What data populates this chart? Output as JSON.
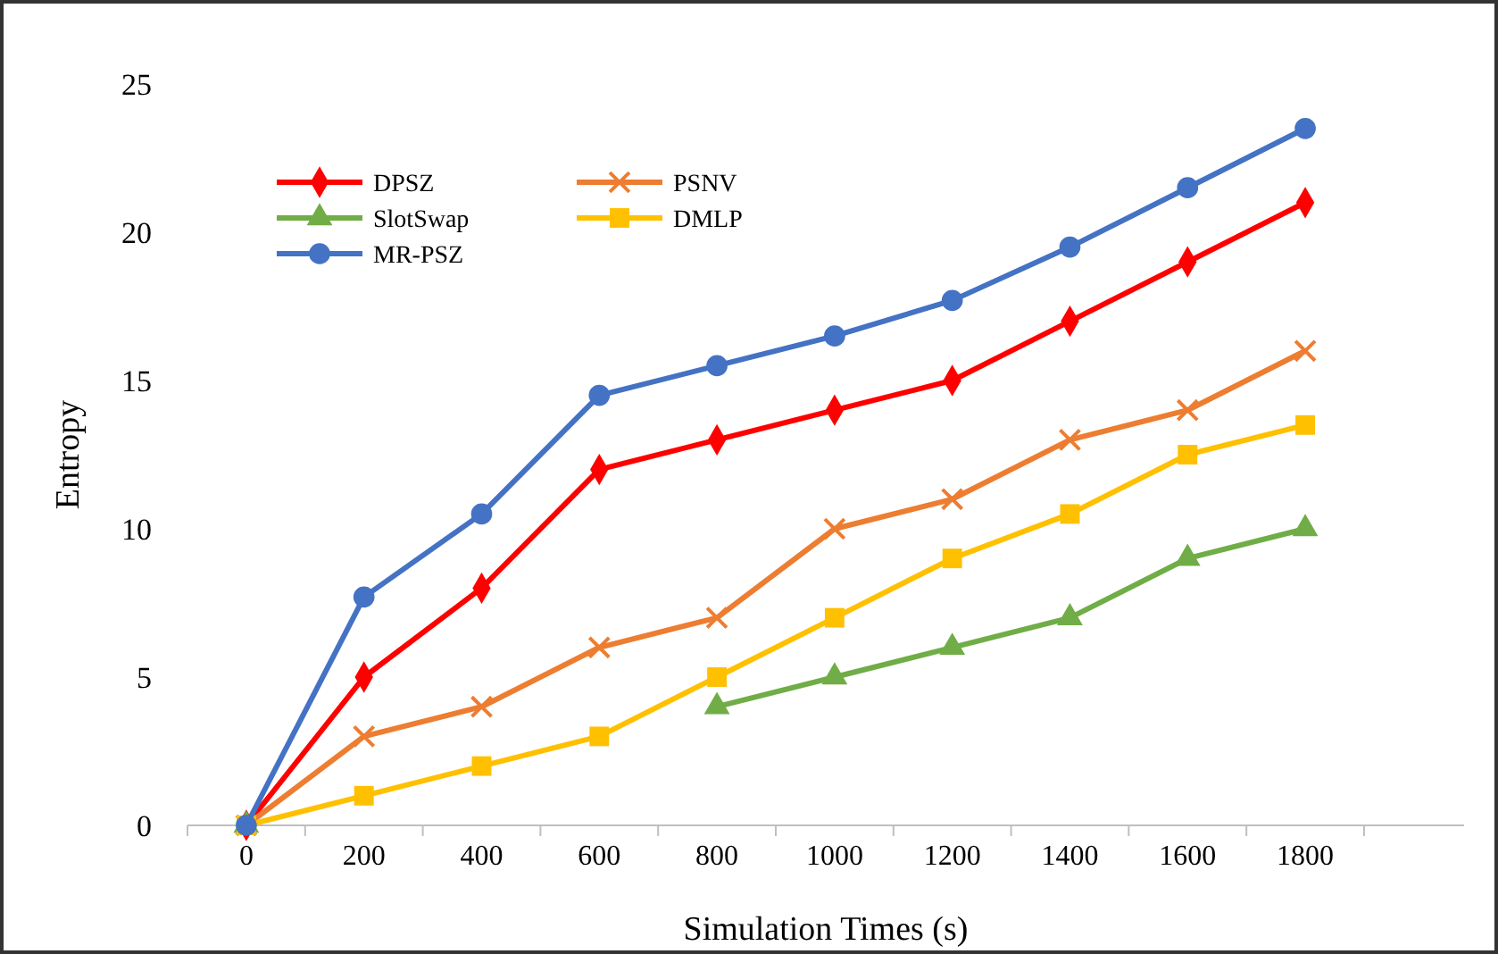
{
  "chart_data": {
    "type": "line",
    "xlabel": "Simulation Times (s)",
    "ylabel": "Entropy",
    "categories": [
      "0",
      "200",
      "400",
      "600",
      "800",
      "1000",
      "1200",
      "1400",
      "1600",
      "1800"
    ],
    "ylim": [
      0,
      25
    ],
    "yticks": [
      0,
      5,
      10,
      15,
      20,
      25
    ],
    "grid": false,
    "legend": "top left",
    "series": [
      {
        "name": "DPSZ",
        "color": "#ff0000",
        "marker": "diamond",
        "values": [
          0,
          5,
          8,
          12,
          13,
          14,
          15,
          17,
          19,
          21
        ]
      },
      {
        "name": "PSNV",
        "color": "#ed7d31",
        "marker": "cross",
        "values": [
          0,
          3,
          4,
          6,
          7,
          10,
          11,
          13,
          14,
          16
        ]
      },
      {
        "name": "SlotSwap",
        "color": "#70ad47",
        "marker": "triangle",
        "values": [
          0,
          null,
          null,
          null,
          4,
          5,
          6,
          7,
          9,
          10
        ]
      },
      {
        "name": "DMLP",
        "color": "#ffc000",
        "marker": "square",
        "values": [
          0,
          1,
          2,
          3,
          5,
          7,
          9,
          10.5,
          12.5,
          13.5
        ]
      },
      {
        "name": "MR-PSZ",
        "color": "#4472c4",
        "marker": "circle",
        "values": [
          0,
          7.7,
          10.5,
          14.5,
          15.5,
          16.5,
          17.7,
          19.5,
          21.5,
          23.5
        ]
      }
    ]
  }
}
